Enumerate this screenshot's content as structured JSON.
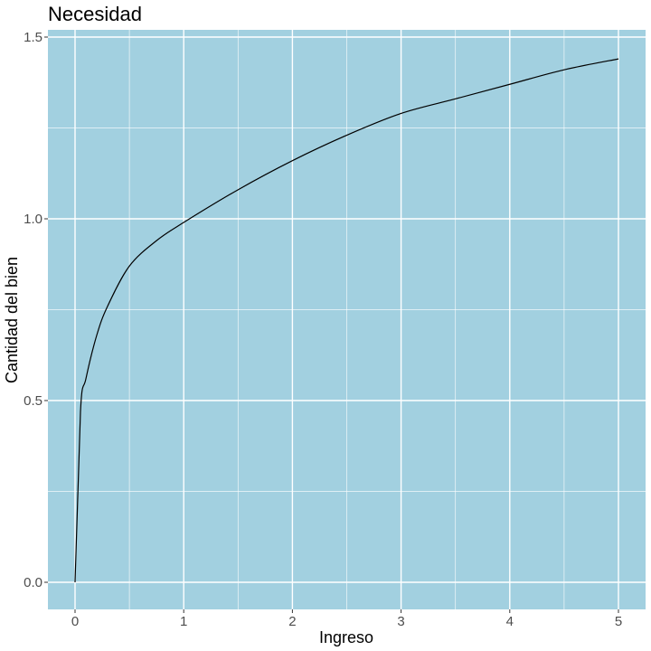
{
  "chart_data": {
    "type": "line",
    "title": "Necesidad",
    "xlabel": "Ingreso",
    "ylabel": "Cantidad del bien",
    "xlim": [
      0,
      5
    ],
    "ylim": [
      0,
      1.5
    ],
    "x_ticks": [
      0,
      1,
      2,
      3,
      4,
      5
    ],
    "x_tick_labels": [
      "0",
      "1",
      "2",
      "3",
      "4",
      "5"
    ],
    "y_ticks": [
      0,
      0.5,
      1.0,
      1.5
    ],
    "y_tick_labels": [
      "0.0",
      "0.5",
      "1.0",
      "1.5"
    ],
    "grid": true,
    "legend": "none",
    "series": [
      {
        "x": [
          0,
          0.05,
          0.1,
          0.2,
          0.3,
          0.5,
          0.75,
          1.0,
          1.5,
          2.0,
          2.5,
          3.0,
          3.5,
          4.0,
          4.5,
          5.0
        ],
        "y": [
          0,
          0.47,
          0.56,
          0.68,
          0.76,
          0.87,
          0.94,
          0.99,
          1.08,
          1.16,
          1.23,
          1.29,
          1.33,
          1.37,
          1.41,
          1.44
        ]
      }
    ]
  },
  "colors": {
    "panel_background": "#a2d0e0",
    "grid": "#ffffff",
    "line": "#000000",
    "tick_label": "#4d4d4d"
  }
}
